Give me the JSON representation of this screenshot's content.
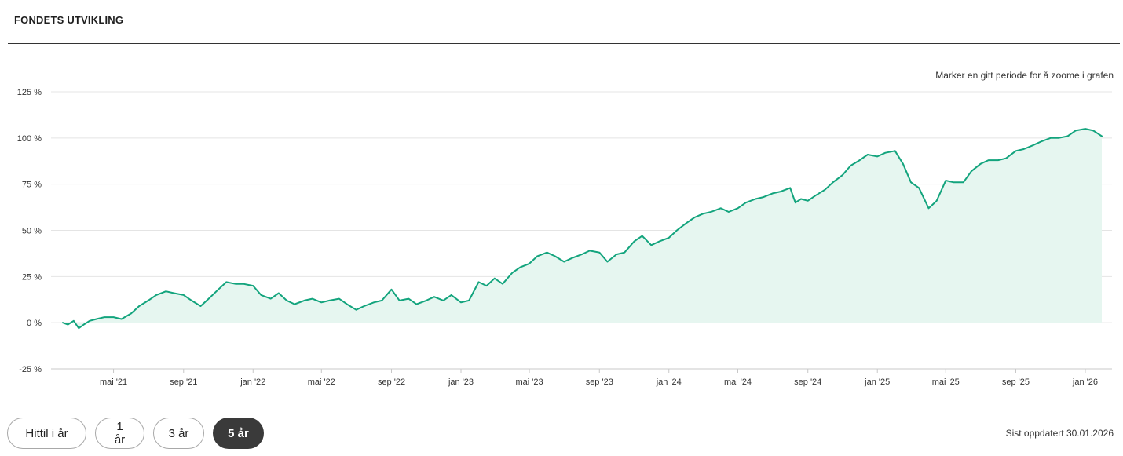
{
  "header": {
    "title": "FONDETS UTVIKLING"
  },
  "zoom_hint": "Marker en gitt periode for å zoome i grafen",
  "period_buttons": [
    {
      "label": "Hittil i år",
      "active": false
    },
    {
      "label": "1 år",
      "active": false
    },
    {
      "label": "3 år",
      "active": false
    },
    {
      "label": "5 år",
      "active": true
    }
  ],
  "updated_label": "Sist oppdatert 30.01.2026",
  "colors": {
    "line": "#13a47d",
    "fill": "#e6f6f0",
    "active_button": "#3a3a3a"
  },
  "chart_data": {
    "type": "area",
    "title": "",
    "xlabel": "",
    "ylabel": "",
    "ylim": [
      -25,
      125
    ],
    "y_ticks": [
      -25,
      0,
      25,
      50,
      75,
      100,
      125
    ],
    "y_tick_labels": [
      "-25 %",
      "0 %",
      "25 %",
      "50 %",
      "75 %",
      "100 %",
      "125 %"
    ],
    "x_ticks": [
      "2021-05-01",
      "2021-09-01",
      "2022-01-01",
      "2022-05-01",
      "2022-09-01",
      "2023-01-01",
      "2023-05-01",
      "2023-09-01",
      "2024-01-01",
      "2024-05-01",
      "2024-09-01",
      "2025-01-01",
      "2025-05-01",
      "2025-09-01",
      "2026-01-01"
    ],
    "x_tick_labels": [
      "mai '21",
      "sep '21",
      "jan '22",
      "mai '22",
      "sep '22",
      "jan '23",
      "mai '23",
      "sep '23",
      "jan '24",
      "mai '24",
      "sep '24",
      "jan '25",
      "mai '25",
      "sep '25",
      "jan '26"
    ],
    "grid": true,
    "series": [
      {
        "x": [
          "2021-02-01",
          "2021-02-10",
          "2021-02-20",
          "2021-03-01",
          "2021-03-10",
          "2021-03-20",
          "2021-04-01",
          "2021-04-15",
          "2021-05-01",
          "2021-05-15",
          "2021-06-01",
          "2021-06-15",
          "2021-07-01",
          "2021-07-15",
          "2021-08-01",
          "2021-08-15",
          "2021-09-01",
          "2021-09-15",
          "2021-10-01",
          "2021-10-15",
          "2021-11-01",
          "2021-11-15",
          "2021-12-01",
          "2021-12-15",
          "2022-01-01",
          "2022-01-15",
          "2022-02-01",
          "2022-02-15",
          "2022-03-01",
          "2022-03-15",
          "2022-04-01",
          "2022-04-15",
          "2022-05-01",
          "2022-05-15",
          "2022-06-01",
          "2022-06-15",
          "2022-07-01",
          "2022-07-15",
          "2022-08-01",
          "2022-08-15",
          "2022-09-01",
          "2022-09-15",
          "2022-10-01",
          "2022-10-15",
          "2022-11-01",
          "2022-11-15",
          "2022-12-01",
          "2022-12-15",
          "2023-01-01",
          "2023-01-15",
          "2023-02-01",
          "2023-02-15",
          "2023-03-01",
          "2023-03-15",
          "2023-04-01",
          "2023-04-15",
          "2023-05-01",
          "2023-05-15",
          "2023-06-01",
          "2023-06-15",
          "2023-07-01",
          "2023-07-15",
          "2023-08-01",
          "2023-08-15",
          "2023-09-01",
          "2023-09-15",
          "2023-10-01",
          "2023-10-15",
          "2023-11-01",
          "2023-11-15",
          "2023-12-01",
          "2023-12-15",
          "2024-01-01",
          "2024-01-15",
          "2024-02-01",
          "2024-02-15",
          "2024-03-01",
          "2024-03-15",
          "2024-04-01",
          "2024-04-15",
          "2024-05-01",
          "2024-05-15",
          "2024-06-01",
          "2024-06-15",
          "2024-07-01",
          "2024-07-15",
          "2024-08-01",
          "2024-08-10",
          "2024-08-20",
          "2024-09-01",
          "2024-09-15",
          "2024-10-01",
          "2024-10-15",
          "2024-11-01",
          "2024-11-15",
          "2024-12-01",
          "2024-12-15",
          "2025-01-01",
          "2025-01-15",
          "2025-02-01",
          "2025-02-15",
          "2025-03-01",
          "2025-03-15",
          "2025-04-01",
          "2025-04-08",
          "2025-04-15",
          "2025-05-01",
          "2025-05-15",
          "2025-06-01",
          "2025-06-15",
          "2025-07-01",
          "2025-07-15",
          "2025-08-01",
          "2025-08-15",
          "2025-09-01",
          "2025-09-15",
          "2025-10-01",
          "2025-10-15",
          "2025-11-01",
          "2025-11-15",
          "2025-12-01",
          "2025-12-15",
          "2026-01-01",
          "2026-01-15",
          "2026-01-30"
        ],
        "values": [
          0,
          -1,
          1,
          -3,
          -1,
          1,
          2,
          3,
          3,
          2,
          5,
          9,
          12,
          15,
          17,
          16,
          15,
          12,
          9,
          13,
          18,
          22,
          21,
          21,
          20,
          15,
          13,
          16,
          12,
          10,
          12,
          13,
          11,
          12,
          13,
          10,
          7,
          9,
          11,
          12,
          18,
          12,
          13,
          10,
          12,
          14,
          12,
          15,
          11,
          12,
          22,
          20,
          24,
          21,
          27,
          30,
          32,
          36,
          38,
          36,
          33,
          35,
          37,
          39,
          38,
          33,
          37,
          38,
          44,
          47,
          42,
          44,
          46,
          50,
          54,
          57,
          59,
          60,
          62,
          60,
          62,
          65,
          67,
          68,
          70,
          71,
          73,
          65,
          67,
          66,
          69,
          72,
          76,
          80,
          85,
          88,
          91,
          90,
          92,
          93,
          86,
          76,
          73,
          62,
          64,
          66,
          77,
          76,
          76,
          82,
          86,
          88,
          88,
          89,
          93,
          94,
          96,
          98,
          100,
          100,
          101,
          104,
          105,
          104,
          101
        ]
      }
    ]
  }
}
